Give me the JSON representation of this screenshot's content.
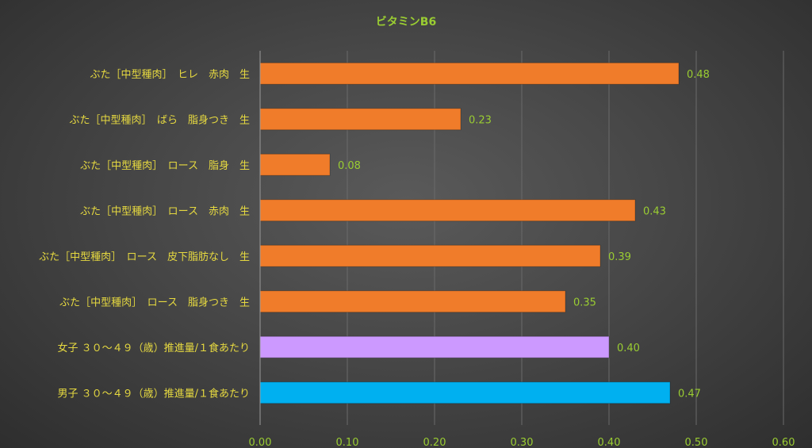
{
  "chart_data": {
    "type": "bar",
    "orientation": "horizontal",
    "title": "ビタミンB6",
    "categories": [
      "ぶた［中型種肉］　ヒレ　赤肉　生",
      "ぶた［中型種肉］　ばら　脂身つき　生",
      "ぶた［中型種肉］　ロース　脂身　生",
      "ぶた［中型種肉］　ロース　赤肉　生",
      "ぶた［中型種肉］　ロース　皮下脂肪なし　生",
      "ぶた［中型種肉］　ロース　脂身つき　生",
      "女子 ３０～４９（歳）推進量/１食あたり",
      "男子 ３０～４９（歳）推進量/１食あたり"
    ],
    "values": [
      0.48,
      0.23,
      0.08,
      0.43,
      0.39,
      0.35,
      0.4,
      0.47
    ],
    "value_labels": [
      "0.48",
      "0.23",
      "0.08",
      "0.43",
      "0.39",
      "0.35",
      "0.40",
      "0.47"
    ],
    "bar_colors": [
      "#F07C2A",
      "#F07C2A",
      "#F07C2A",
      "#F07C2A",
      "#F07C2A",
      "#F07C2A",
      "#CC99FF",
      "#00B0F0"
    ],
    "xlim": [
      0,
      0.6
    ],
    "xticks": [
      0,
      0.1,
      0.2,
      0.3,
      0.4,
      0.5,
      0.6
    ],
    "xtick_labels": [
      "0.00",
      "0.10",
      "0.20",
      "0.30",
      "0.40",
      "0.50",
      "0.60"
    ],
    "grid": true,
    "xlabel": "",
    "ylabel": ""
  }
}
